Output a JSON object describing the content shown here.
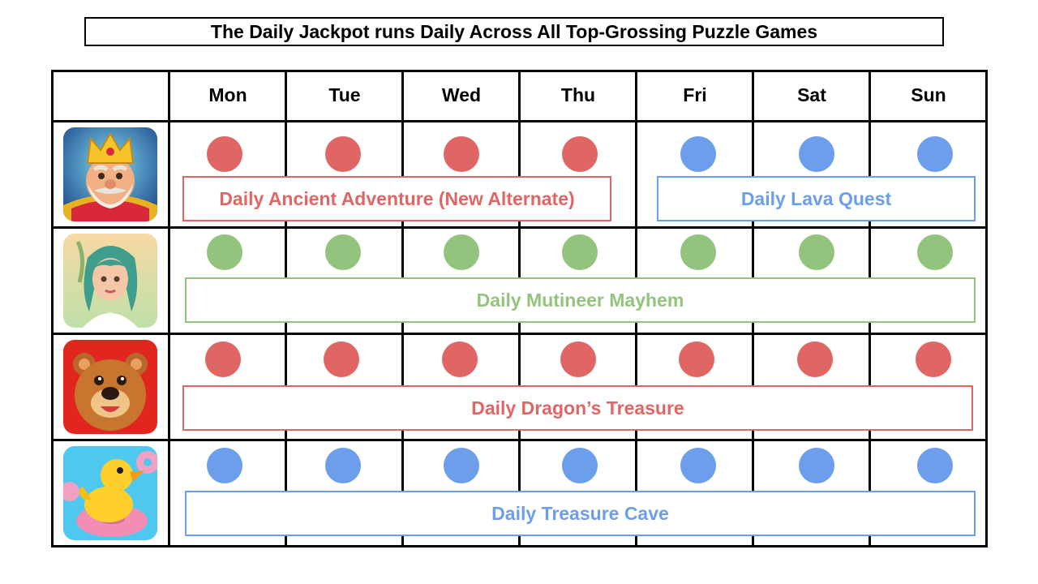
{
  "title": "The Daily Jackpot runs Daily Across All Top-Grossing Puzzle Games",
  "days": [
    "Mon",
    "Tue",
    "Wed",
    "Thu",
    "Fri",
    "Sat",
    "Sun"
  ],
  "colors": {
    "red": "#e06666",
    "blue": "#6d9eeb",
    "green": "#93c47d"
  },
  "games": [
    {
      "icon": "king-game-icon",
      "dots": [
        "red",
        "red",
        "red",
        "red",
        "blue",
        "blue",
        "blue"
      ],
      "events": [
        {
          "label": "Daily Ancient Adventure (New Alternate)",
          "color": "red",
          "start": 0,
          "end": 3
        },
        {
          "label": "Daily Lava Quest",
          "color": "blue",
          "start": 4,
          "end": 6
        }
      ]
    },
    {
      "icon": "green-haired-girl-game-icon",
      "dots": [
        "green",
        "green",
        "green",
        "green",
        "green",
        "green",
        "green"
      ],
      "events": [
        {
          "label": "Daily Mutineer Mayhem",
          "color": "green",
          "start": 0,
          "end": 6
        }
      ]
    },
    {
      "icon": "bear-game-icon",
      "dots": [
        "red",
        "red",
        "red",
        "red",
        "red",
        "red",
        "red"
      ],
      "events": [
        {
          "label": "Daily Dragon’s Treasure",
          "color": "red",
          "start": 0,
          "end": 6
        }
      ]
    },
    {
      "icon": "duck-donut-game-icon",
      "dots": [
        "blue",
        "blue",
        "blue",
        "blue",
        "blue",
        "blue",
        "blue"
      ],
      "events": [
        {
          "label": "Daily Treasure Cave",
          "color": "blue",
          "start": 0,
          "end": 6
        }
      ]
    }
  ]
}
